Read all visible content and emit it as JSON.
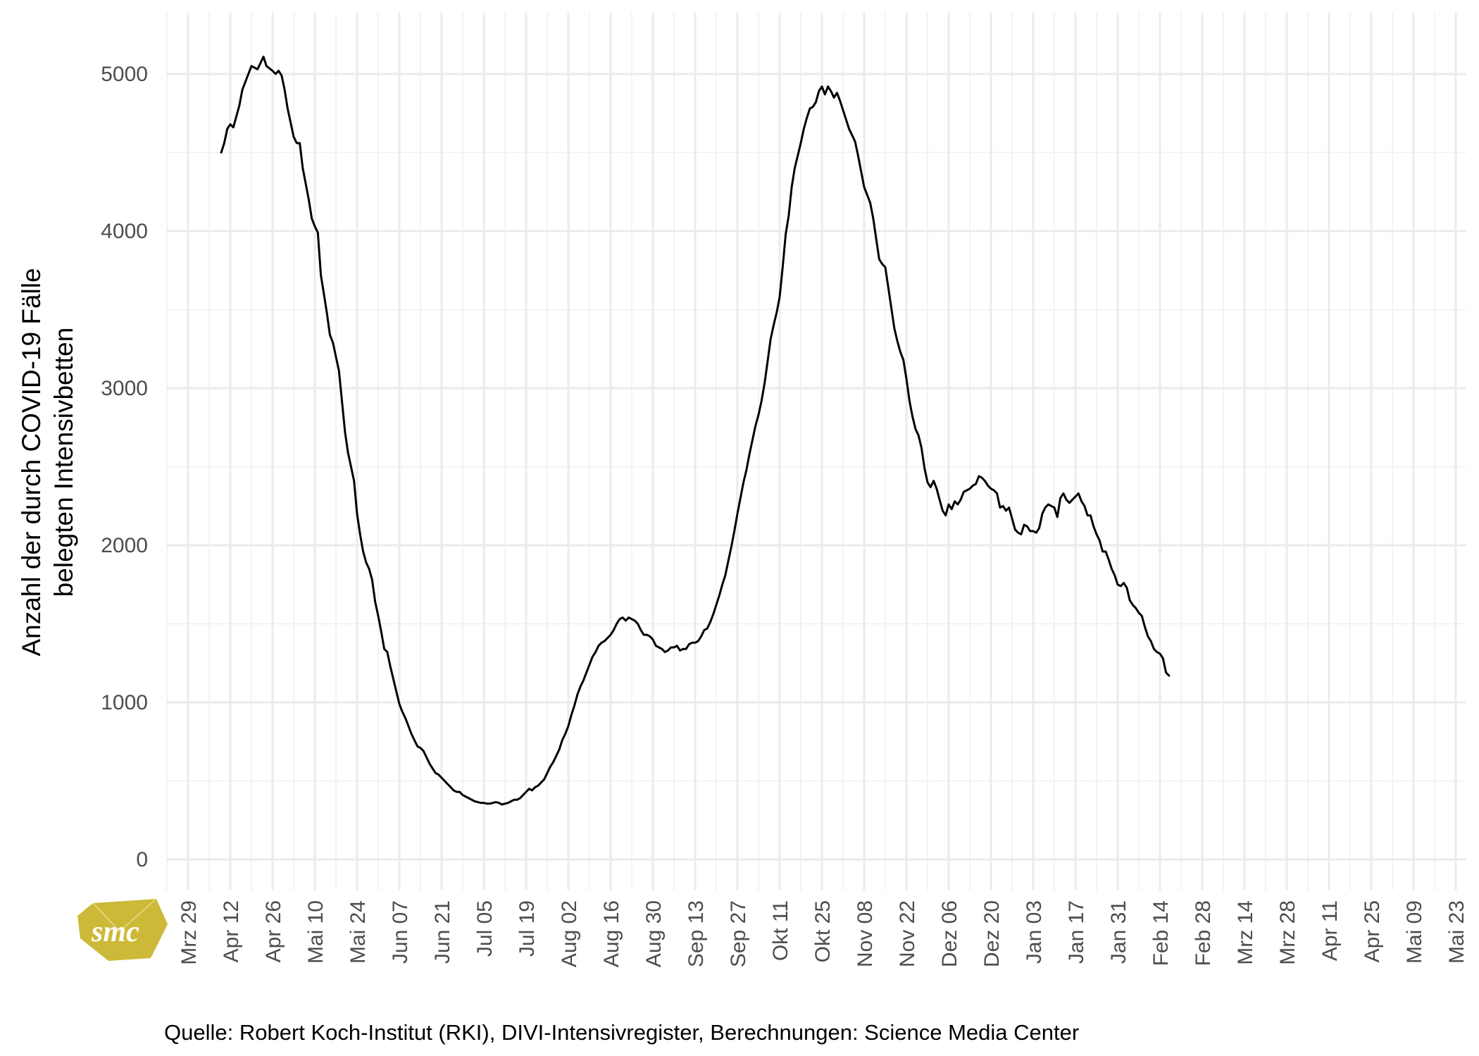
{
  "chart_data": {
    "type": "line",
    "title": "",
    "xlabel": "",
    "ylabel_lines": [
      "Anzahl der durch COVID-19 Fälle",
      "belegten Intensivbetten"
    ],
    "caption": "Quelle: Robert Koch-Institut (RKI), DIVI-Intensivregister, Berechnungen: Science Media Center",
    "x_start_date": "2020-03-29",
    "xlim_days": [
      -8,
      427
    ],
    "ylim": [
      -200,
      5200
    ],
    "yticks": [
      0,
      1000,
      2000,
      3000,
      4000,
      5000
    ],
    "ytick_labels": [
      "0",
      "1000",
      "2000",
      "3000",
      "4000",
      "5000"
    ],
    "xticks_days": [
      0,
      14,
      28,
      42,
      56,
      70,
      84,
      98,
      112,
      126,
      140,
      154,
      168,
      182,
      196,
      210,
      224,
      238,
      252,
      266,
      280,
      294,
      308,
      322,
      336,
      350,
      364,
      378,
      392,
      406,
      420
    ],
    "xtick_labels": [
      "Mrz 29",
      "Apr 12",
      "Apr 26",
      "Mai 10",
      "Mai 24",
      "Jun 07",
      "Jun 21",
      "Jul 05",
      "Jul 19",
      "Aug 02",
      "Aug 16",
      "Aug 30",
      "Sep 13",
      "Sep 27",
      "Okt 11",
      "Okt 25",
      "Nov 08",
      "Nov 22",
      "Dez 06",
      "Dez 20",
      "Jan 03",
      "Jan 17",
      "Jan 31",
      "Feb 14",
      "Feb 28",
      "Mrz 14",
      "Mrz 28",
      "Apr 11",
      "Apr 25",
      "Mai 09",
      "Mai 23"
    ],
    "grid": true,
    "series": [
      {
        "color": "#000000",
        "points": [
          [
            11,
            4500
          ],
          [
            12,
            4560
          ],
          [
            13,
            4650
          ],
          [
            14,
            4680
          ],
          [
            15,
            4660
          ],
          [
            17,
            4800
          ],
          [
            18,
            4900
          ],
          [
            20,
            5000
          ],
          [
            21,
            5050
          ],
          [
            22,
            5040
          ],
          [
            23,
            5030
          ],
          [
            24,
            5070
          ],
          [
            25,
            5110
          ],
          [
            26,
            5050
          ],
          [
            28,
            5020
          ],
          [
            29,
            5000
          ],
          [
            30,
            5020
          ],
          [
            31,
            4990
          ],
          [
            32,
            4900
          ],
          [
            33,
            4780
          ],
          [
            35,
            4600
          ],
          [
            36,
            4560
          ],
          [
            37,
            4560
          ],
          [
            38,
            4400
          ],
          [
            40,
            4200
          ],
          [
            41,
            4080
          ],
          [
            42,
            4030
          ],
          [
            43,
            3990
          ],
          [
            44,
            3720
          ],
          [
            46,
            3480
          ],
          [
            47,
            3340
          ],
          [
            48,
            3290
          ],
          [
            49,
            3200
          ],
          [
            50,
            3110
          ],
          [
            52,
            2720
          ],
          [
            53,
            2590
          ],
          [
            54,
            2500
          ],
          [
            55,
            2410
          ],
          [
            56,
            2200
          ],
          [
            57,
            2070
          ],
          [
            58,
            1960
          ],
          [
            59,
            1890
          ],
          [
            60,
            1850
          ],
          [
            61,
            1780
          ],
          [
            62,
            1640
          ],
          [
            63,
            1550
          ],
          [
            64,
            1450
          ],
          [
            65,
            1340
          ],
          [
            66,
            1320
          ],
          [
            67,
            1230
          ],
          [
            68,
            1150
          ],
          [
            69,
            1070
          ],
          [
            70,
            990
          ],
          [
            71,
            940
          ],
          [
            72,
            900
          ],
          [
            73,
            850
          ],
          [
            74,
            800
          ],
          [
            75,
            760
          ],
          [
            76,
            720
          ],
          [
            77,
            710
          ],
          [
            78,
            690
          ],
          [
            79,
            650
          ],
          [
            80,
            610
          ],
          [
            81,
            580
          ],
          [
            82,
            550
          ],
          [
            83,
            540
          ],
          [
            84,
            520
          ],
          [
            85,
            500
          ],
          [
            86,
            480
          ],
          [
            87,
            460
          ],
          [
            88,
            440
          ],
          [
            89,
            430
          ],
          [
            90,
            430
          ],
          [
            91,
            410
          ],
          [
            92,
            400
          ],
          [
            93,
            390
          ],
          [
            94,
            380
          ],
          [
            95,
            370
          ],
          [
            96,
            365
          ],
          [
            97,
            360
          ],
          [
            98,
            360
          ],
          [
            99,
            355
          ],
          [
            100,
            355
          ],
          [
            101,
            360
          ],
          [
            102,
            365
          ],
          [
            103,
            360
          ],
          [
            104,
            350
          ],
          [
            105,
            355
          ],
          [
            106,
            360
          ],
          [
            107,
            370
          ],
          [
            108,
            380
          ],
          [
            109,
            380
          ],
          [
            110,
            390
          ],
          [
            111,
            410
          ],
          [
            112,
            430
          ],
          [
            113,
            450
          ],
          [
            114,
            440
          ],
          [
            115,
            460
          ],
          [
            116,
            470
          ],
          [
            117,
            490
          ],
          [
            118,
            510
          ],
          [
            119,
            550
          ],
          [
            120,
            590
          ],
          [
            121,
            620
          ],
          [
            122,
            660
          ],
          [
            123,
            700
          ],
          [
            124,
            760
          ],
          [
            125,
            800
          ],
          [
            126,
            850
          ],
          [
            127,
            920
          ],
          [
            128,
            980
          ],
          [
            129,
            1050
          ],
          [
            130,
            1100
          ],
          [
            131,
            1140
          ],
          [
            132,
            1190
          ],
          [
            133,
            1240
          ],
          [
            134,
            1290
          ],
          [
            135,
            1320
          ],
          [
            136,
            1360
          ],
          [
            137,
            1380
          ],
          [
            138,
            1390
          ],
          [
            139,
            1410
          ],
          [
            140,
            1430
          ],
          [
            141,
            1460
          ],
          [
            142,
            1500
          ],
          [
            143,
            1530
          ],
          [
            144,
            1540
          ],
          [
            145,
            1520
          ],
          [
            146,
            1540
          ],
          [
            147,
            1530
          ],
          [
            148,
            1520
          ],
          [
            149,
            1500
          ],
          [
            150,
            1460
          ],
          [
            151,
            1430
          ],
          [
            152,
            1430
          ],
          [
            153,
            1420
          ],
          [
            154,
            1400
          ],
          [
            155,
            1360
          ],
          [
            156,
            1350
          ],
          [
            157,
            1340
          ],
          [
            158,
            1320
          ],
          [
            159,
            1330
          ],
          [
            160,
            1350
          ],
          [
            161,
            1350
          ],
          [
            162,
            1360
          ],
          [
            163,
            1330
          ],
          [
            164,
            1340
          ],
          [
            165,
            1340
          ],
          [
            166,
            1370
          ],
          [
            167,
            1380
          ],
          [
            168,
            1380
          ],
          [
            169,
            1390
          ],
          [
            170,
            1420
          ],
          [
            171,
            1460
          ],
          [
            172,
            1470
          ],
          [
            173,
            1510
          ],
          [
            174,
            1560
          ],
          [
            175,
            1620
          ],
          [
            176,
            1680
          ],
          [
            177,
            1750
          ],
          [
            178,
            1810
          ],
          [
            179,
            1900
          ],
          [
            180,
            1990
          ],
          [
            181,
            2090
          ],
          [
            182,
            2200
          ],
          [
            183,
            2300
          ],
          [
            184,
            2400
          ],
          [
            185,
            2480
          ],
          [
            186,
            2580
          ],
          [
            187,
            2670
          ],
          [
            188,
            2760
          ],
          [
            189,
            2830
          ],
          [
            190,
            2920
          ],
          [
            191,
            3030
          ],
          [
            192,
            3170
          ],
          [
            193,
            3310
          ],
          [
            194,
            3400
          ],
          [
            195,
            3480
          ],
          [
            196,
            3580
          ],
          [
            197,
            3770
          ],
          [
            198,
            3980
          ],
          [
            199,
            4100
          ],
          [
            200,
            4280
          ],
          [
            201,
            4400
          ],
          [
            202,
            4480
          ],
          [
            203,
            4560
          ],
          [
            204,
            4650
          ],
          [
            205,
            4720
          ],
          [
            206,
            4780
          ],
          [
            207,
            4790
          ],
          [
            208,
            4820
          ],
          [
            209,
            4890
          ],
          [
            210,
            4920
          ],
          [
            211,
            4870
          ],
          [
            212,
            4920
          ],
          [
            213,
            4890
          ],
          [
            214,
            4850
          ],
          [
            215,
            4880
          ],
          [
            216,
            4830
          ],
          [
            217,
            4770
          ],
          [
            218,
            4710
          ],
          [
            219,
            4650
          ],
          [
            220,
            4610
          ],
          [
            221,
            4570
          ],
          [
            222,
            4480
          ],
          [
            223,
            4380
          ],
          [
            224,
            4280
          ],
          [
            225,
            4230
          ],
          [
            226,
            4180
          ],
          [
            227,
            4080
          ],
          [
            228,
            3950
          ],
          [
            229,
            3820
          ],
          [
            230,
            3790
          ],
          [
            231,
            3770
          ],
          [
            232,
            3640
          ],
          [
            233,
            3510
          ],
          [
            234,
            3380
          ],
          [
            235,
            3300
          ],
          [
            236,
            3230
          ],
          [
            237,
            3180
          ],
          [
            238,
            3060
          ],
          [
            239,
            2920
          ],
          [
            240,
            2820
          ],
          [
            241,
            2740
          ],
          [
            242,
            2700
          ],
          [
            243,
            2620
          ],
          [
            244,
            2490
          ],
          [
            245,
            2400
          ],
          [
            246,
            2370
          ],
          [
            247,
            2410
          ],
          [
            248,
            2360
          ],
          [
            249,
            2290
          ],
          [
            250,
            2220
          ],
          [
            251,
            2190
          ],
          [
            252,
            2260
          ],
          [
            253,
            2230
          ],
          [
            254,
            2280
          ],
          [
            255,
            2260
          ],
          [
            256,
            2290
          ],
          [
            257,
            2340
          ],
          [
            258,
            2350
          ],
          [
            259,
            2360
          ],
          [
            260,
            2380
          ],
          [
            261,
            2390
          ],
          [
            262,
            2440
          ],
          [
            263,
            2430
          ],
          [
            264,
            2410
          ],
          [
            265,
            2380
          ],
          [
            266,
            2360
          ],
          [
            267,
            2350
          ],
          [
            268,
            2330
          ],
          [
            269,
            2240
          ],
          [
            270,
            2250
          ],
          [
            271,
            2220
          ],
          [
            272,
            2240
          ],
          [
            273,
            2170
          ],
          [
            274,
            2100
          ],
          [
            275,
            2080
          ],
          [
            276,
            2070
          ],
          [
            277,
            2130
          ],
          [
            278,
            2120
          ],
          [
            279,
            2090
          ],
          [
            280,
            2090
          ],
          [
            281,
            2080
          ],
          [
            282,
            2110
          ],
          [
            283,
            2200
          ],
          [
            284,
            2240
          ],
          [
            285,
            2260
          ],
          [
            286,
            2250
          ],
          [
            287,
            2240
          ],
          [
            288,
            2180
          ],
          [
            289,
            2300
          ],
          [
            290,
            2330
          ],
          [
            291,
            2290
          ],
          [
            292,
            2270
          ],
          [
            293,
            2290
          ],
          [
            294,
            2310
          ],
          [
            295,
            2330
          ],
          [
            296,
            2280
          ],
          [
            297,
            2250
          ],
          [
            298,
            2190
          ],
          [
            299,
            2190
          ],
          [
            300,
            2120
          ],
          [
            301,
            2070
          ],
          [
            302,
            2030
          ],
          [
            303,
            1960
          ],
          [
            304,
            1960
          ],
          [
            305,
            1910
          ],
          [
            306,
            1850
          ],
          [
            307,
            1810
          ],
          [
            308,
            1750
          ],
          [
            309,
            1740
          ],
          [
            310,
            1760
          ],
          [
            311,
            1730
          ],
          [
            312,
            1650
          ],
          [
            313,
            1620
          ],
          [
            314,
            1600
          ],
          [
            315,
            1570
          ],
          [
            316,
            1550
          ],
          [
            317,
            1480
          ],
          [
            318,
            1420
          ],
          [
            319,
            1390
          ],
          [
            320,
            1340
          ],
          [
            321,
            1320
          ],
          [
            322,
            1310
          ],
          [
            323,
            1280
          ],
          [
            324,
            1190
          ],
          [
            325,
            1170
          ]
        ]
      }
    ]
  },
  "logo": {
    "text": "smc",
    "color": "#cdb938"
  }
}
